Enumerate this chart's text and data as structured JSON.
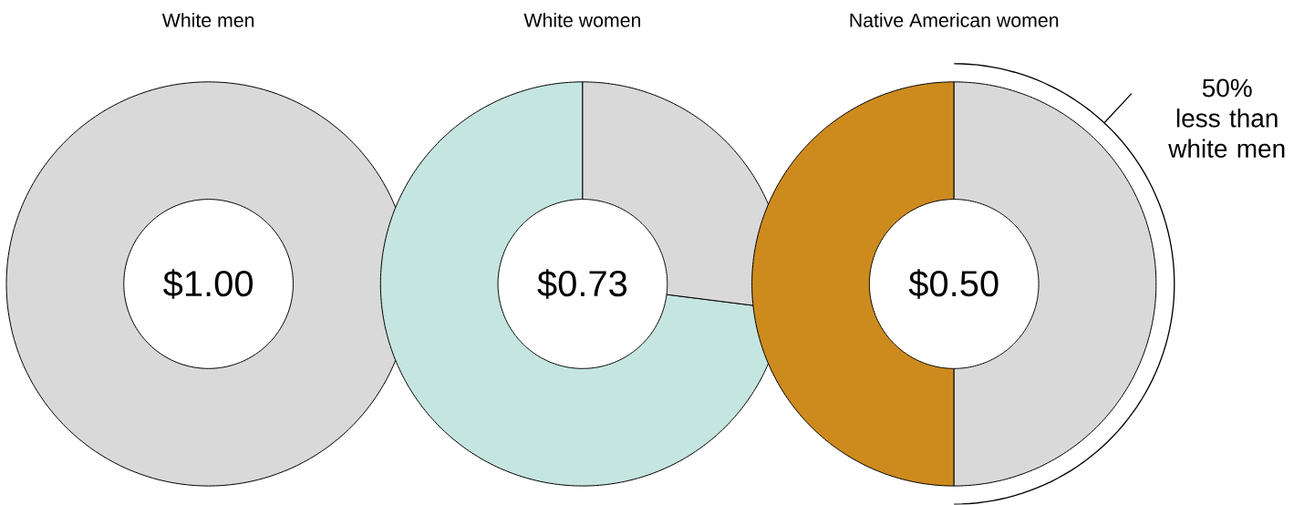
{
  "chart_data": [
    {
      "type": "donut",
      "title": "White men",
      "categories": [
        null
      ],
      "values": [
        100
      ],
      "colors": [
        "#d9d9d9"
      ],
      "annotations": [
        "$1.00"
      ]
    },
    {
      "type": "donut",
      "title": "White women",
      "categories": [
        null,
        null
      ],
      "values": [
        73,
        27
      ],
      "colors": [
        "#c5e5e0",
        "#d9d9d9"
      ],
      "annotations": [
        "$0.73"
      ]
    },
    {
      "type": "donut",
      "title": "Native American women",
      "categories": [
        null,
        null
      ],
      "values": [
        50,
        50
      ],
      "colors": [
        "#cd8b1e",
        "#d9d9d9"
      ],
      "annotations": [
        "$0.50",
        "50% less than white men"
      ]
    }
  ]
}
